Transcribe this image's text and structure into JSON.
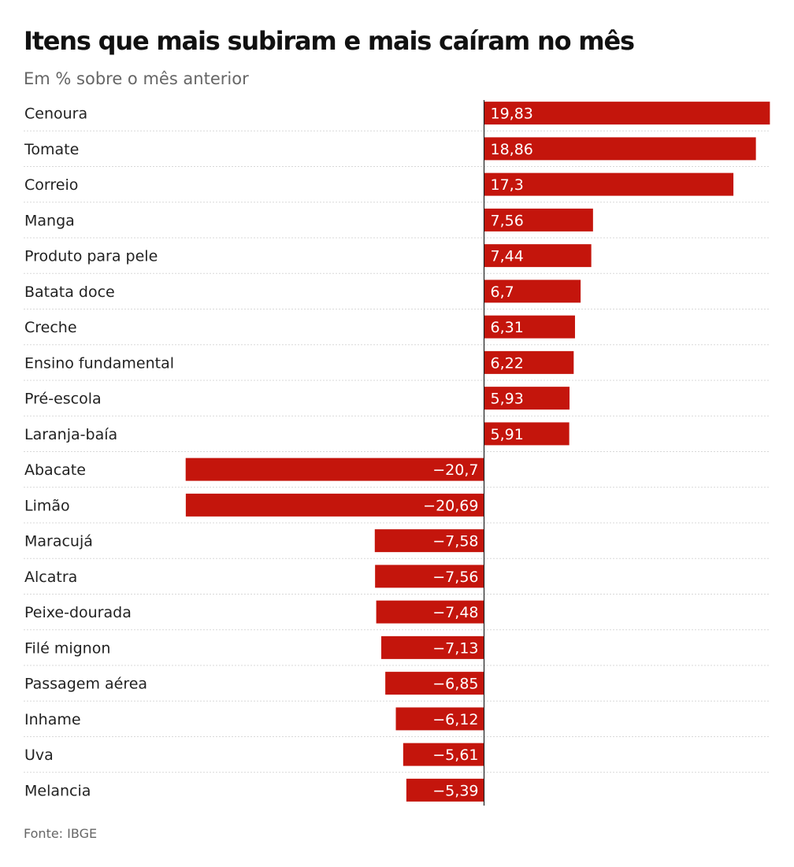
{
  "title": "Itens que mais subiram e mais caíram no mês",
  "subtitle": "Em % sobre o mês anterior",
  "source": "Fonte: IBGE",
  "colors": {
    "bar": "#c4150c",
    "bar_label": "#ffffff",
    "category_label": "#222222",
    "gridline": "#d8d8d8",
    "axis": "#222222"
  },
  "chart_data": {
    "type": "bar",
    "orientation": "horizontal",
    "categories": [
      "Cenoura",
      "Tomate",
      "Correio",
      "Manga",
      "Produto para pele",
      "Batata doce",
      "Creche",
      "Ensino fundamental",
      "Pré-escola",
      "Laranja-baía",
      "Abacate",
      "Limão",
      "Maracujá",
      "Alcatra",
      "Peixe-dourada",
      "Filé mignon",
      "Passagem aérea",
      "Inhame",
      "Uva",
      "Melancia"
    ],
    "values": [
      19.83,
      18.86,
      17.3,
      7.56,
      7.44,
      6.7,
      6.31,
      6.22,
      5.93,
      5.91,
      -20.7,
      -20.69,
      -7.58,
      -7.56,
      -7.48,
      -7.13,
      -6.85,
      -6.12,
      -5.61,
      -5.39
    ],
    "value_labels": [
      "19,83",
      "18,86",
      "17,3",
      "7,56",
      "7,44",
      "6,7",
      "6,31",
      "6,22",
      "5,93",
      "5,91",
      "−20,7",
      "−20,69",
      "−7,58",
      "−7,56",
      "−7,48",
      "−7,13",
      "−6,85",
      "−6,12",
      "−5,61",
      "−5,39"
    ],
    "xlim": [
      -20.7,
      19.83
    ],
    "grid": "horizontal dotted row separators",
    "legend": "none"
  }
}
